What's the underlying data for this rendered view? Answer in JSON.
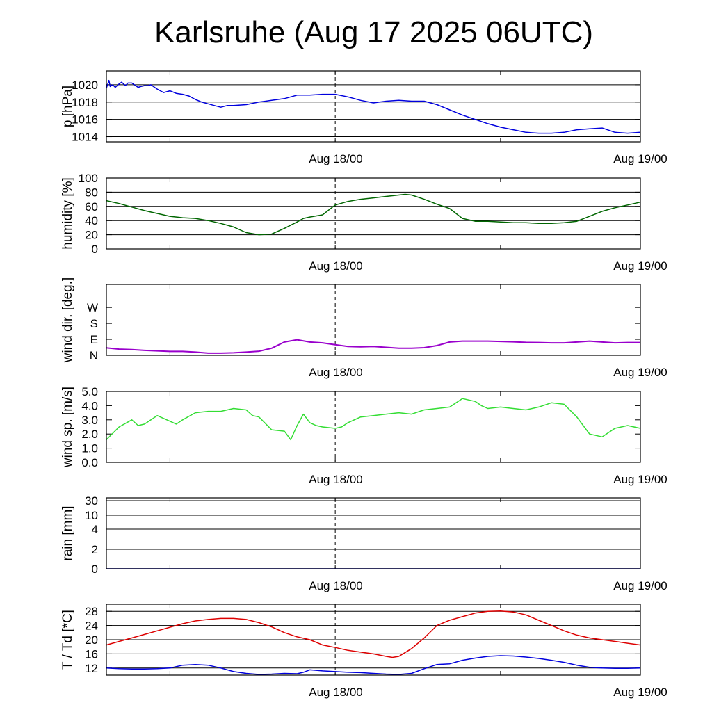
{
  "title": "Karlsruhe (Aug 17 2025 06UTC)",
  "chart_data": [
    {
      "id": "pressure",
      "type": "line",
      "ylabel": "p [hPa]",
      "ylim": [
        1013.4,
        1021.6
      ],
      "yticks": [
        1014,
        1016,
        1018,
        1020
      ],
      "ytick_labels": [
        "1014",
        "1016",
        "1018",
        "1020"
      ],
      "grid": true,
      "xlim_hours": [
        0,
        42
      ],
      "xtick_labels": [
        "Aug 18/00",
        "Aug 19/00"
      ],
      "color": "#0000dd",
      "series": [
        {
          "x": [
            0,
            0.2,
            0.3,
            0.5,
            0.7,
            1,
            1.2,
            1.5,
            1.7,
            2,
            2.5,
            2.7,
            3,
            3.3,
            3.5,
            4,
            4.5,
            5,
            5.5,
            6,
            6.5,
            7,
            7.5,
            8,
            8.5,
            9,
            9.5,
            10,
            11,
            12,
            13,
            14,
            15,
            16,
            17,
            18,
            19,
            20,
            21,
            22,
            23,
            24,
            25,
            26,
            27,
            28,
            29,
            30,
            31,
            32,
            33,
            34,
            35,
            36,
            37,
            38,
            39,
            40,
            41,
            42
          ],
          "y": [
            1019.6,
            1020.5,
            1019.8,
            1020.0,
            1019.7,
            1020.1,
            1020.3,
            1019.9,
            1020.2,
            1020.2,
            1019.7,
            1019.8,
            1019.9,
            1019.9,
            1020.0,
            1019.5,
            1019.1,
            1019.3,
            1019.0,
            1018.9,
            1018.7,
            1018.3,
            1018.0,
            1017.8,
            1017.6,
            1017.4,
            1017.6,
            1017.6,
            1017.7,
            1018.0,
            1018.2,
            1018.4,
            1018.8,
            1018.8,
            1018.9,
            1018.9,
            1018.6,
            1018.2,
            1017.9,
            1018.1,
            1018.2,
            1018.1,
            1018.1,
            1017.7,
            1017.1,
            1016.5,
            1016.0,
            1015.5,
            1015.1,
            1014.8,
            1014.5,
            1014.4,
            1014.4,
            1014.5,
            1014.8,
            1014.9,
            1015.0,
            1014.5,
            1014.4,
            1014.5
          ]
        }
      ]
    },
    {
      "id": "humidity",
      "type": "line",
      "ylabel": "humidity [%]",
      "ylim": [
        0,
        100
      ],
      "yticks": [
        0,
        20,
        40,
        60,
        80,
        100
      ],
      "ytick_labels": [
        "0",
        "20",
        "40",
        "60",
        "80",
        "100"
      ],
      "grid": true,
      "xlim_hours": [
        0,
        42
      ],
      "xtick_labels": [
        "Aug 18/00",
        "Aug 19/00"
      ],
      "color": "#006600",
      "series": [
        {
          "x": [
            0,
            1,
            2,
            3,
            4,
            5,
            6,
            7,
            8,
            9,
            10,
            10.5,
            11,
            12,
            13,
            14,
            15,
            15.5,
            16,
            17,
            18,
            19,
            20,
            21,
            22,
            23,
            23.5,
            24,
            25,
            26,
            27,
            28,
            29,
            30,
            31,
            32,
            33,
            34,
            35,
            36,
            37,
            38,
            39,
            40,
            41,
            42
          ],
          "y": [
            68,
            64,
            59,
            54,
            50,
            46,
            44,
            43,
            40,
            36,
            31,
            27,
            23,
            20,
            21,
            29,
            38,
            43,
            45,
            48,
            62,
            67,
            70,
            72,
            74,
            76,
            77,
            76,
            70,
            63,
            57,
            43,
            39,
            39,
            38,
            37,
            37,
            36,
            36,
            37,
            39,
            46,
            53,
            58,
            62,
            66
          ]
        }
      ]
    },
    {
      "id": "wind-direction",
      "type": "line",
      "ylabel": "wind dir. [deg.]",
      "ylim": [
        0,
        400
      ],
      "yticks": [
        0,
        90,
        180,
        270
      ],
      "ytick_labels": [
        "N",
        "E",
        "S",
        "W"
      ],
      "grid": false,
      "xlim_hours": [
        0,
        42
      ],
      "xtick_labels": [
        "Aug 18/00",
        "Aug 19/00"
      ],
      "color": "#9900cc",
      "series": [
        {
          "x": [
            0,
            1,
            2,
            3,
            4,
            5,
            6,
            7,
            8,
            9,
            10,
            11,
            12,
            13,
            14,
            15,
            16,
            17,
            18,
            19,
            20,
            21,
            22,
            23,
            24,
            25,
            26,
            27,
            28,
            29,
            30,
            31,
            32,
            33,
            34,
            35,
            36,
            37,
            38,
            39,
            40,
            41,
            42
          ],
          "y": [
            42,
            35,
            32,
            28,
            25,
            22,
            22,
            18,
            12,
            12,
            14,
            18,
            23,
            40,
            75,
            88,
            75,
            70,
            60,
            50,
            48,
            50,
            45,
            40,
            40,
            43,
            55,
            75,
            80,
            80,
            80,
            78,
            76,
            73,
            72,
            70,
            70,
            75,
            80,
            75,
            70,
            72,
            72
          ]
        }
      ]
    },
    {
      "id": "wind-speed",
      "type": "line",
      "ylabel": "wind sp. [m/s]",
      "ylim": [
        0,
        5.0
      ],
      "yticks": [
        0,
        1,
        2,
        3,
        4,
        5
      ],
      "ytick_labels": [
        "0.0",
        "1.0",
        "2.0",
        "3.0",
        "4.0",
        "5.0"
      ],
      "grid": false,
      "xlim_hours": [
        0,
        42
      ],
      "xtick_labels": [
        "Aug 18/00",
        "Aug 19/00"
      ],
      "color": "#33dd33",
      "series": [
        {
          "x": [
            0,
            1,
            2,
            2.5,
            3,
            4,
            5,
            5.5,
            6,
            7,
            8,
            9,
            10,
            11,
            11.5,
            12,
            13,
            14,
            14.5,
            15,
            15.5,
            16,
            16.5,
            17,
            18,
            18.5,
            19,
            20,
            21,
            22,
            23,
            24,
            25,
            26,
            27,
            28,
            29,
            29.5,
            30,
            31,
            32,
            33,
            34,
            35,
            36,
            37,
            38,
            39,
            40,
            41,
            42
          ],
          "y": [
            1.6,
            2.5,
            3.0,
            2.6,
            2.7,
            3.3,
            2.9,
            2.7,
            3.0,
            3.5,
            3.6,
            3.6,
            3.8,
            3.7,
            3.3,
            3.2,
            2.3,
            2.2,
            1.6,
            2.6,
            3.4,
            2.8,
            2.6,
            2.5,
            2.4,
            2.5,
            2.8,
            3.2,
            3.3,
            3.4,
            3.5,
            3.4,
            3.7,
            3.8,
            3.9,
            4.5,
            4.3,
            4.0,
            3.8,
            3.9,
            3.8,
            3.7,
            3.9,
            4.2,
            4.1,
            3.2,
            2.0,
            1.8,
            2.4,
            2.6,
            2.4
          ]
        }
      ]
    },
    {
      "id": "rain",
      "type": "line",
      "ylabel": "rain [mm]",
      "scale": "nonlinear",
      "yticks": [
        0,
        2,
        4,
        10,
        30
      ],
      "ytick_labels": [
        "0",
        "2",
        "4",
        "10",
        "30"
      ],
      "grid": true,
      "xlim_hours": [
        0,
        42
      ],
      "xtick_labels": [
        "Aug 18/00",
        "Aug 19/00"
      ],
      "color": "#0000dd",
      "series": [
        {
          "x": [
            0,
            42
          ],
          "y": [
            0,
            0
          ]
        }
      ]
    },
    {
      "id": "temperature",
      "type": "line",
      "ylabel": "T / Td [*C]",
      "ylim": [
        10,
        30
      ],
      "yticks": [
        12,
        16,
        20,
        24,
        28
      ],
      "ytick_labels": [
        "12",
        "16",
        "20",
        "24",
        "28"
      ],
      "grid": true,
      "xlim_hours": [
        0,
        42
      ],
      "xtick_labels": [
        "Aug 18/00",
        "Aug 19/00"
      ],
      "series": [
        {
          "color": "#dd0000",
          "x": [
            0,
            1,
            2,
            3,
            4,
            5,
            6,
            7,
            8,
            9,
            10,
            11,
            12,
            13,
            14,
            15,
            16,
            17,
            18,
            19,
            20,
            21,
            22,
            22.5,
            23,
            24,
            25,
            26,
            27,
            28,
            29,
            30,
            31,
            32,
            33,
            34,
            35,
            36,
            37,
            38,
            39,
            40,
            41,
            42
          ],
          "y": [
            18.5,
            19.5,
            20.5,
            21.5,
            22.5,
            23.5,
            24.5,
            25.3,
            25.7,
            26.0,
            26.0,
            25.7,
            24.8,
            23.6,
            22.0,
            20.8,
            20.0,
            18.5,
            17.8,
            17.0,
            16.5,
            16.0,
            15.3,
            15.0,
            15.3,
            17.5,
            20.5,
            24.0,
            25.5,
            26.5,
            27.5,
            28.0,
            28.1,
            27.8,
            27.0,
            25.5,
            24.0,
            22.5,
            21.3,
            20.5,
            20.0,
            19.5,
            19.0,
            18.5
          ]
        },
        {
          "color": "#0000dd",
          "x": [
            0,
            1,
            2,
            3,
            4,
            5,
            6,
            7,
            8,
            9,
            10,
            11,
            12,
            13,
            14,
            15,
            15.5,
            16,
            17,
            18,
            19,
            20,
            21,
            22,
            23,
            24,
            25,
            26,
            27,
            28,
            29,
            30,
            31,
            32,
            33,
            34,
            35,
            36,
            37,
            38,
            39,
            40,
            41,
            42
          ],
          "y": [
            12.0,
            11.8,
            11.7,
            11.7,
            11.8,
            12.0,
            12.8,
            13.0,
            12.8,
            12.0,
            11.0,
            10.5,
            10.2,
            10.3,
            10.5,
            10.4,
            10.8,
            11.5,
            11.2,
            11.0,
            10.8,
            10.7,
            10.5,
            10.3,
            10.2,
            10.5,
            11.8,
            13.0,
            13.2,
            14.2,
            14.8,
            15.3,
            15.5,
            15.4,
            15.1,
            14.7,
            14.2,
            13.6,
            12.8,
            12.2,
            12.0,
            11.9,
            11.9,
            12.0
          ]
        }
      ]
    }
  ]
}
